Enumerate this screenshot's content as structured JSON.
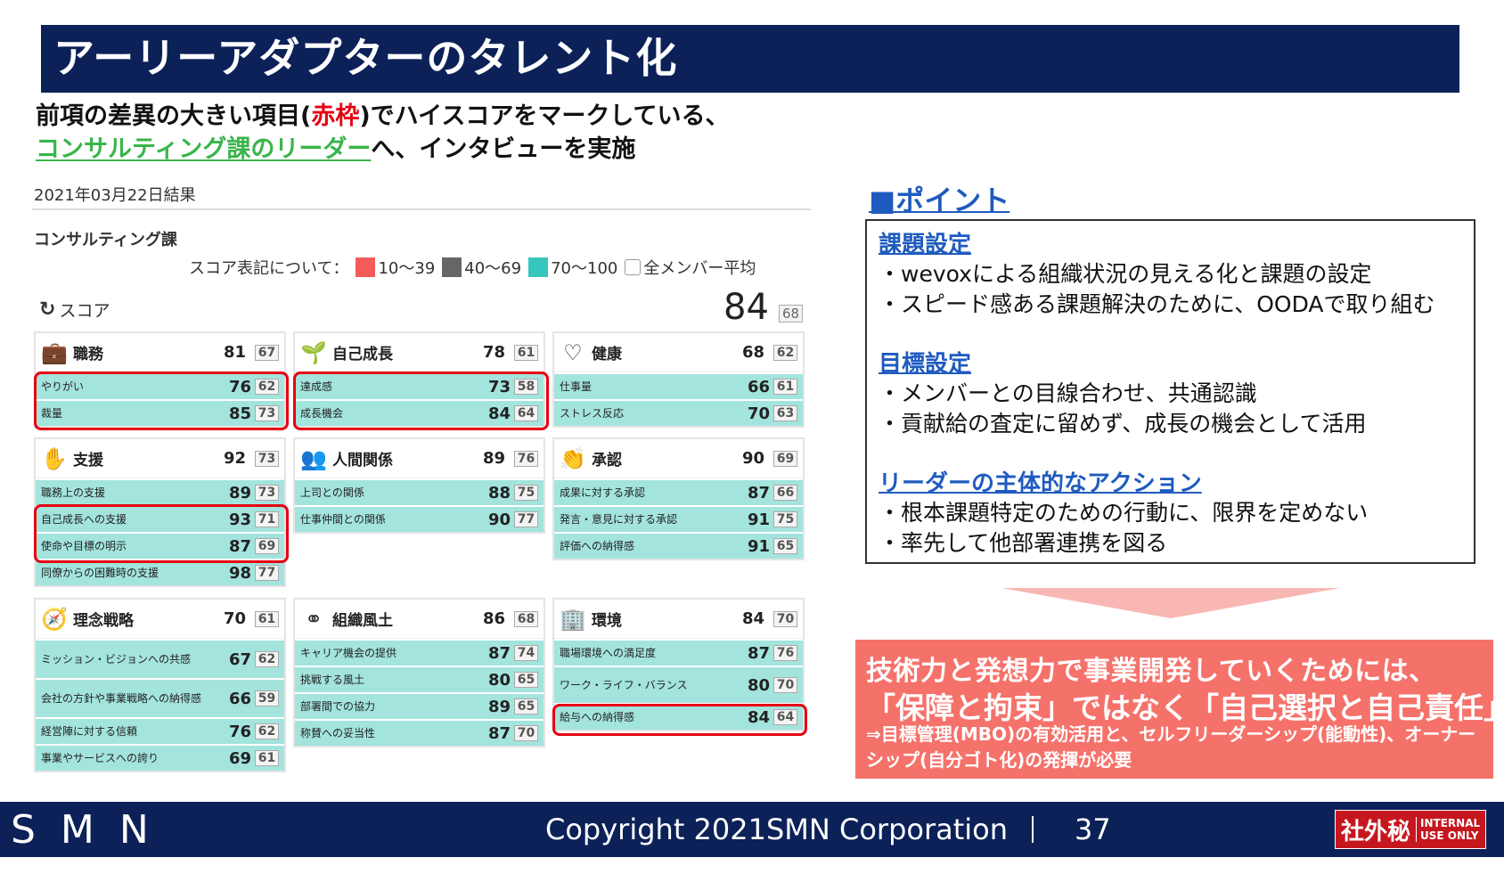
{
  "header": {
    "title": "アーリーアダプターのタレント化"
  },
  "subtitle": {
    "line1_a": "前項の差異の大きい項目(",
    "line1_red": "赤枠",
    "line1_b": ")でハイスコアをマークしている、",
    "line2_green": "コンサルティング課のリーダー",
    "line2_b": "へ、インタビューを実施"
  },
  "report": {
    "date": "2021年03月22日結果",
    "dept": "コンサルティング課",
    "legend": {
      "label": "スコア表記について：",
      "items": [
        {
          "color": "#f35b59",
          "label": "10〜39"
        },
        {
          "color": "#666666",
          "label": "40〜69"
        },
        {
          "color": "#35c6bd",
          "label": "70〜100"
        }
      ],
      "avg_label": "全メンバー平均"
    },
    "score_label": "スコア",
    "total": "84",
    "total_avg": "68",
    "cards": [
      {
        "name": "職務",
        "icon": "briefcase-icon",
        "glyph": "💼",
        "score": "81",
        "avg": "67",
        "rows": [
          {
            "label": "やりがい",
            "score": "76",
            "avg": "62"
          },
          {
            "label": "裁量",
            "score": "85",
            "avg": "73"
          }
        ]
      },
      {
        "name": "自己成長",
        "icon": "sprout-icon",
        "glyph": "🌱",
        "score": "78",
        "avg": "61",
        "rows": [
          {
            "label": "達成感",
            "score": "73",
            "avg": "58"
          },
          {
            "label": "成長機会",
            "score": "84",
            "avg": "64"
          }
        ]
      },
      {
        "name": "健康",
        "icon": "heart-icon",
        "glyph": "♡",
        "score": "68",
        "avg": "62",
        "rows": [
          {
            "label": "仕事量",
            "score": "66",
            "avg": "61"
          },
          {
            "label": "ストレス反応",
            "score": "70",
            "avg": "63"
          }
        ]
      },
      {
        "name": "支援",
        "icon": "support-icon",
        "glyph": "✋",
        "score": "92",
        "avg": "73",
        "rows": [
          {
            "label": "職務上の支援",
            "score": "89",
            "avg": "73"
          },
          {
            "label": "自己成長への支援",
            "score": "93",
            "avg": "71"
          },
          {
            "label": "使命や目標の明示",
            "score": "87",
            "avg": "69"
          },
          {
            "label": "同僚からの困難時の支援",
            "score": "98",
            "avg": "77"
          }
        ]
      },
      {
        "name": "人間関係",
        "icon": "people-icon",
        "glyph": "👥",
        "score": "89",
        "avg": "76",
        "rows": [
          {
            "label": "上司との関係",
            "score": "88",
            "avg": "75"
          },
          {
            "label": "仕事仲間との関係",
            "score": "90",
            "avg": "77"
          }
        ]
      },
      {
        "name": "承認",
        "icon": "applause-icon",
        "glyph": "👏",
        "score": "90",
        "avg": "69",
        "rows": [
          {
            "label": "成果に対する承認",
            "score": "87",
            "avg": "66"
          },
          {
            "label": "発言・意見に対する承認",
            "score": "91",
            "avg": "75"
          },
          {
            "label": "評価への納得感",
            "score": "91",
            "avg": "65"
          }
        ]
      },
      {
        "name": "理念戦略",
        "icon": "compass-icon",
        "glyph": "🧭",
        "score": "70",
        "avg": "61",
        "rows": [
          {
            "label": "ミッション・ビジョンへの共感",
            "score": "67",
            "avg": "62"
          },
          {
            "label": "会社の方針や事業戦略への納得感",
            "score": "66",
            "avg": "59"
          },
          {
            "label": "経営陣に対する信頼",
            "score": "76",
            "avg": "62"
          },
          {
            "label": "事業やサービスへの誇り",
            "score": "69",
            "avg": "61"
          }
        ]
      },
      {
        "name": "組織風土",
        "icon": "organization-icon",
        "glyph": "⚭",
        "score": "86",
        "avg": "68",
        "rows": [
          {
            "label": "キャリア機会の提供",
            "score": "87",
            "avg": "74"
          },
          {
            "label": "挑戦する風土",
            "score": "80",
            "avg": "65"
          },
          {
            "label": "部署間での協力",
            "score": "89",
            "avg": "65"
          },
          {
            "label": "称賛への妥当性",
            "score": "87",
            "avg": "70"
          }
        ]
      },
      {
        "name": "環境",
        "icon": "building-icon",
        "glyph": "🏢",
        "score": "84",
        "avg": "70",
        "rows": [
          {
            "label": "職場環境への満足度",
            "score": "87",
            "avg": "76"
          },
          {
            "label": "ワーク・ライフ・バランス",
            "score": "80",
            "avg": "70"
          },
          {
            "label": "給与への納得感",
            "score": "84",
            "avg": "64"
          }
        ]
      }
    ]
  },
  "points": {
    "title": "■ポイント",
    "sections": [
      {
        "heading": "課題設定",
        "items": [
          "・wevoxによる組織状況の見える化と課題の設定",
          "・スピード感ある課題解決のために、OODAで取り組む"
        ]
      },
      {
        "heading": "目標設定",
        "items": [
          "・メンバーとの目線合わせ、共通認識",
          "・貢献給の査定に留めず、成長の機会として活用"
        ]
      },
      {
        "heading": "リーダーの主体的なアクション",
        "items": [
          "・根本課題特定のための行動に、限界を定めない",
          "・率先して他部署連携を図る"
        ]
      }
    ]
  },
  "conclusion": {
    "line1": "技術力と発想力で事業開発していくためには、",
    "line2": "「保障と拘束」ではなく「自己選択と自己責任」",
    "line3": "⇒目標管理(MBO)の有効活用と、セルフリーダーシップ(能動性)、オーナーシップ(自分ゴト化)の発揮が必要"
  },
  "footer": {
    "logo": "SMN",
    "copyright": "Copyright 2021SMN Corporation",
    "page": "37",
    "conf_big": "社外秘",
    "conf_small1": "INTERNAL",
    "conf_small2": "USE ONLY"
  },
  "colors": {
    "navy": "#0c2158",
    "teal_row": "#a3e4dd",
    "highlight": "#e60012",
    "conclusion_bg": "#f5726b"
  }
}
